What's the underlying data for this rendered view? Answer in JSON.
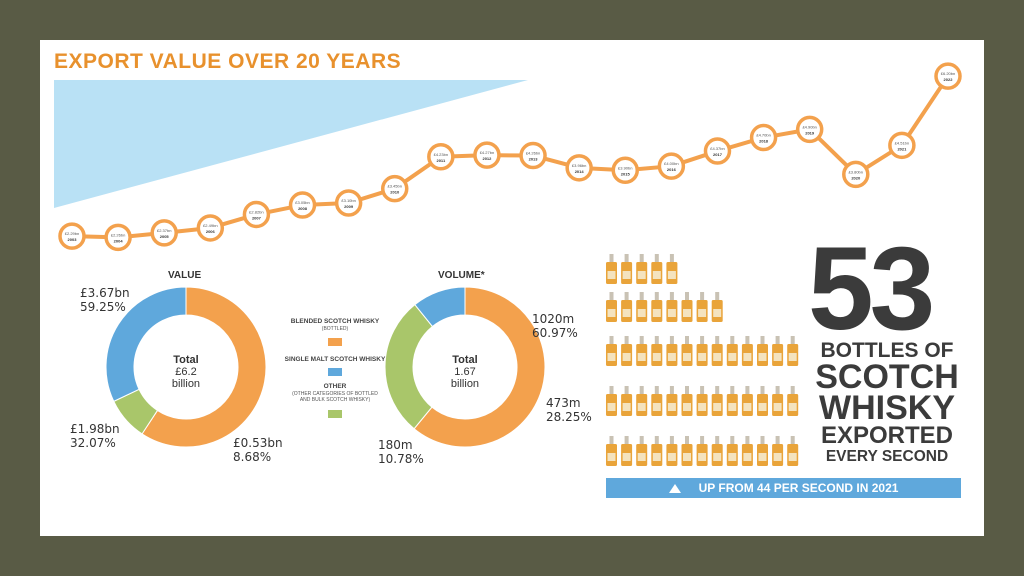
{
  "title": "EXPORT VALUE OVER 20 YEARS",
  "colors": {
    "orange": "#f3a14d",
    "orange_dark": "#e8912d",
    "blue": "#5fa8dc",
    "green": "#a9c66a",
    "wedge": "#b9e1f5",
    "bottle": "#e9a43a",
    "dark": "#3b3b3b",
    "frame": "#595b45"
  },
  "chart_data": [
    {
      "type": "line",
      "title": "EXPORT VALUE OVER 20 YEARS",
      "x": [
        "2003",
        "2004",
        "2005",
        "2006",
        "2007",
        "2008",
        "2009",
        "2010",
        "2011",
        "2012",
        "2013",
        "2014",
        "2015",
        "2016",
        "2017",
        "2018",
        "2019",
        "2020",
        "2021",
        "2022"
      ],
      "values": [
        2.29,
        2.26,
        2.37,
        2.49,
        2.82,
        3.05,
        3.1,
        3.45,
        4.23,
        4.27,
        4.26,
        3.96,
        3.9,
        4.0,
        4.37,
        4.7,
        4.9,
        3.8,
        4.51,
        6.2
      ],
      "value_labels": [
        "£2.29bn",
        "£2.26bn",
        "£2.37bn",
        "£2.49bn",
        "£2.82bn",
        "£3.05bn",
        "£3.10bn",
        "£3.45bn",
        "£4.23bn",
        "£4.27bn",
        "£4.26bn",
        "£3.96bn",
        "£3.90bn",
        "£4.00bn",
        "£4.37bn",
        "£4.70bn",
        "£4.90bn",
        "£3.80bn",
        "£4.51bn",
        "£6.20bn"
      ],
      "grid": false,
      "legend": "none"
    },
    {
      "type": "pie",
      "title": "VALUE",
      "center": [
        "Total",
        "£6.2",
        "billion"
      ],
      "slices": [
        {
          "name": "BLENDED SCOTCH WHISKY",
          "value": 59.25,
          "label": "£3.67bn",
          "pct": "59.25%"
        },
        {
          "name": "OTHER",
          "value": 8.68,
          "label": "£0.53bn",
          "pct": "8.68%"
        },
        {
          "name": "SINGLE MALT SCOTCH WHISKY",
          "value": 32.07,
          "label": "£1.98bn",
          "pct": "32.07%"
        }
      ]
    },
    {
      "type": "pie",
      "title": "VOLUME*",
      "center": [
        "Total",
        "1.67",
        "billion"
      ],
      "slices": [
        {
          "name": "BLENDED SCOTCH WHISKY",
          "value": 60.97,
          "label": "1020m",
          "pct": "60.97%"
        },
        {
          "name": "OTHER",
          "value": 28.25,
          "label": "473m",
          "pct": "28.25%"
        },
        {
          "name": "SINGLE MALT SCOTCH WHISKY",
          "value": 10.78,
          "label": "180m",
          "pct": "10.78%"
        }
      ]
    }
  ],
  "legend": [
    {
      "name": "BLENDED SCOTCH WHISKY",
      "sub": "(BOTTLED)",
      "color": "#f3a14d"
    },
    {
      "name": "SINGLE MALT SCOTCH WHISKY",
      "sub": "",
      "color": "#5fa8dc"
    },
    {
      "name": "OTHER",
      "sub": "(OTHER CATEGORIES OF BOTTLED AND BULK SCOTCH WHISKY)",
      "color": "#a9c66a"
    }
  ],
  "stat": {
    "number": "53",
    "lines": [
      "BOTTLES OF",
      "SCOTCH",
      "WHISKY",
      "EXPORTED",
      "EVERY SECOND"
    ],
    "bottle_rows": [
      5,
      8,
      13,
      13,
      13
    ],
    "banner": "UP FROM 44 PER SECOND IN 2021"
  }
}
